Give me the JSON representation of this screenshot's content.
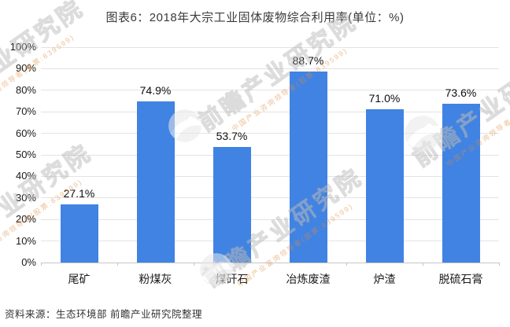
{
  "title": "图表6：2018年大宗工业固体废物综合利用率(单位：%)",
  "source": "资料来源：生态环境部 前瞻产业研究院整理",
  "watermark": {
    "main": "前瞻产业研究院",
    "sub": "中国产业咨询领导者(股票:839599)"
  },
  "colors": {
    "bar": "#4083E3",
    "grid": "#E3E3E5",
    "axis": "#C6C6C6",
    "title_text": "#3A3A3A",
    "label_text": "#1A1A1A",
    "watermark_gray": "#E9E9E9",
    "watermark_orange": "#DE8C3E"
  },
  "chart_data": {
    "type": "bar",
    "title": "图表6：2018年大宗工业固体废物综合利用率(单位：%)",
    "categories": [
      "尾矿",
      "粉煤灰",
      "煤矸石",
      "冶炼废渣",
      "炉渣",
      "脱硫石膏"
    ],
    "values": [
      27.1,
      74.9,
      53.7,
      88.7,
      71.0,
      73.6
    ],
    "value_labels": [
      "27.1%",
      "74.9%",
      "53.7%",
      "88.7%",
      "71.0%",
      "73.6%"
    ],
    "xlabel": "",
    "ylabel": "",
    "ylim": [
      0,
      100
    ],
    "ytick_step": 10,
    "ytick_labels": [
      "0%",
      "10%",
      "20%",
      "30%",
      "40%",
      "50%",
      "60%",
      "70%",
      "80%",
      "90%",
      "100%"
    ],
    "grid": true,
    "legend": false,
    "source_note": "资料来源：生态环境部 前瞻产业研究院整理"
  }
}
